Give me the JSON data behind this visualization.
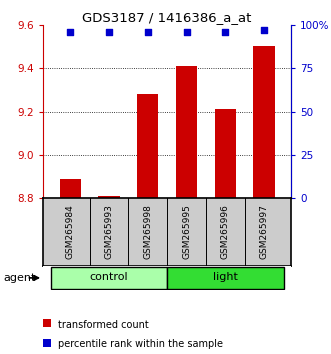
{
  "title": "GDS3187 / 1416386_a_at",
  "samples": [
    "GSM265984",
    "GSM265993",
    "GSM265998",
    "GSM265995",
    "GSM265996",
    "GSM265997"
  ],
  "groups": [
    "control",
    "control",
    "control",
    "light",
    "light",
    "light"
  ],
  "bar_values": [
    8.89,
    8.81,
    9.28,
    9.41,
    9.21,
    9.5
  ],
  "percentile_values": [
    96,
    96,
    96,
    96,
    96,
    97
  ],
  "bar_color": "#cc0000",
  "dot_color": "#0000cc",
  "ylim_left": [
    8.8,
    9.6
  ],
  "ylim_right": [
    0,
    100
  ],
  "yticks_left": [
    8.8,
    9.0,
    9.2,
    9.4,
    9.6
  ],
  "yticks_right": [
    0,
    25,
    50,
    75,
    100
  ],
  "ytick_labels_right": [
    "0",
    "25",
    "50",
    "75",
    "100%"
  ],
  "group_colors": {
    "control": "#aaffaa",
    "light": "#33dd33"
  },
  "bar_width": 0.55,
  "agent_label": "agent",
  "legend_items": [
    "transformed count",
    "percentile rank within the sample"
  ],
  "legend_colors": [
    "#cc0000",
    "#0000cc"
  ],
  "background_color": "#ffffff",
  "tick_region_bg": "#cccccc"
}
